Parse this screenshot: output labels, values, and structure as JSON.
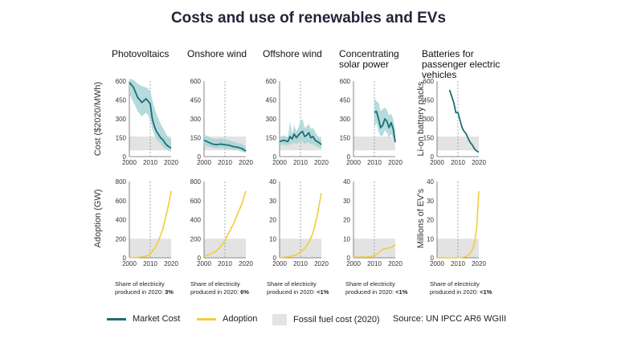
{
  "title": "Costs and use of renewables and EVs",
  "colors": {
    "market_cost": "#1b6f77",
    "band": "#a9d5d6",
    "adoption": "#f2cd3c",
    "fossil": "#e3e3e3"
  },
  "row_labels": {
    "cost": "Cost ($2020/MWh)",
    "battery_cost": "Li-on battery packs",
    "adoption": "Adoption (GW)",
    "ev_adoption": "Millions of EV's"
  },
  "legend": {
    "market_cost": "Market Cost",
    "adoption": "Adoption",
    "fossil": "Fossil fuel cost (2020)",
    "source": "Source: UN IPCC AR6 WGIII"
  },
  "shares": [
    {
      "label": "Share of electricity\nproduced in 2020: ",
      "value": "3%"
    },
    {
      "label": "Share of electricity\nproduced in 2020: ",
      "value": "6%"
    },
    {
      "label": "Share of electricity\nproduced in 2020: ",
      "value": "<1%"
    },
    {
      "label": "Share of electricity\nproduced in 2020: ",
      "value": "<1%"
    },
    {
      "label": "Share of electricity\nproduced in 2020: ",
      "value": "<1%"
    }
  ],
  "chart_data": [
    {
      "type": "line",
      "panel": "Photovoltaics",
      "cost": {
        "ylim": [
          0,
          600
        ],
        "yticks": [
          0,
          150,
          300,
          450,
          600
        ],
        "xticks": [
          2000,
          2010,
          2020
        ],
        "fossil_band": [
          50,
          160
        ],
        "x": [
          2000,
          2002,
          2004,
          2006,
          2008,
          2009,
          2010,
          2011,
          2012,
          2013,
          2014,
          2015,
          2016,
          2017,
          2018,
          2019,
          2020
        ],
        "values": [
          590,
          550,
          470,
          430,
          460,
          440,
          420,
          300,
          240,
          200,
          175,
          150,
          135,
          110,
          90,
          78,
          68
        ],
        "band_high": [
          620,
          610,
          580,
          560,
          550,
          540,
          520,
          450,
          390,
          340,
          300,
          260,
          230,
          200,
          170,
          150,
          140
        ],
        "band_low": [
          500,
          430,
          360,
          320,
          350,
          330,
          290,
          220,
          170,
          140,
          120,
          100,
          80,
          65,
          55,
          45,
          40
        ]
      },
      "adoption": {
        "ylim": [
          0,
          800
        ],
        "yticks": [
          0,
          200,
          400,
          600,
          800
        ],
        "xticks": [
          2000,
          2010,
          2020
        ],
        "fossil_band": [
          0,
          200
        ],
        "x": [
          2000,
          2004,
          2008,
          2010,
          2012,
          2014,
          2016,
          2018,
          2019,
          2020
        ],
        "values": [
          2,
          4,
          15,
          40,
          100,
          180,
          300,
          480,
          580,
          700
        ]
      }
    },
    {
      "type": "line",
      "panel": "Onshore wind",
      "cost": {
        "ylim": [
          0,
          600
        ],
        "yticks": [
          0,
          150,
          300,
          450,
          600
        ],
        "xticks": [
          2000,
          2010,
          2020
        ],
        "fossil_band": [
          50,
          160
        ],
        "x": [
          2000,
          2002,
          2004,
          2006,
          2008,
          2010,
          2012,
          2014,
          2016,
          2018,
          2020
        ],
        "values": [
          130,
          115,
          100,
          95,
          100,
          95,
          90,
          80,
          75,
          65,
          45
        ],
        "band_high": [
          175,
          160,
          145,
          140,
          145,
          140,
          130,
          120,
          110,
          100,
          80
        ],
        "band_low": [
          90,
          80,
          70,
          65,
          70,
          65,
          60,
          55,
          50,
          40,
          30
        ]
      },
      "adoption": {
        "ylim": [
          0,
          800
        ],
        "yticks": [
          0,
          200,
          400,
          600,
          800
        ],
        "xticks": [
          2000,
          2010,
          2020
        ],
        "fossil_band": [
          0,
          200
        ],
        "x": [
          2000,
          2002,
          2004,
          2006,
          2008,
          2010,
          2012,
          2014,
          2016,
          2018,
          2020
        ],
        "values": [
          17,
          30,
          48,
          75,
          120,
          180,
          270,
          350,
          460,
          560,
          700
        ]
      }
    },
    {
      "type": "line",
      "panel": "Offshore wind",
      "cost": {
        "ylim": [
          0,
          600
        ],
        "yticks": [
          0,
          150,
          300,
          450,
          600
        ],
        "xticks": [
          2000,
          2010,
          2020
        ],
        "fossil_band": [
          50,
          160
        ],
        "x": [
          2000,
          2002,
          2004,
          2005,
          2006,
          2007,
          2008,
          2009,
          2010,
          2011,
          2012,
          2013,
          2014,
          2015,
          2016,
          2017,
          2018,
          2019,
          2020
        ],
        "values": [
          120,
          130,
          120,
          160,
          140,
          180,
          150,
          170,
          190,
          200,
          160,
          170,
          190,
          150,
          160,
          130,
          120,
          110,
          95
        ],
        "band_high": [
          150,
          170,
          150,
          280,
          180,
          250,
          200,
          230,
          280,
          300,
          230,
          240,
          260,
          220,
          230,
          200,
          170,
          150,
          130
        ],
        "band_low": [
          90,
          95,
          90,
          100,
          100,
          110,
          100,
          110,
          120,
          120,
          100,
          110,
          110,
          100,
          100,
          85,
          80,
          70,
          60
        ]
      },
      "adoption": {
        "ylim": [
          0,
          40
        ],
        "yticks": [
          0,
          10,
          20,
          30,
          40
        ],
        "xticks": [
          2000,
          2010,
          2020
        ],
        "fossil_band": [
          0,
          10
        ],
        "x": [
          2000,
          2004,
          2008,
          2010,
          2012,
          2014,
          2016,
          2018,
          2019,
          2020
        ],
        "values": [
          0.1,
          0.5,
          1.5,
          3,
          5,
          8,
          13,
          22,
          28,
          34
        ]
      }
    },
    {
      "type": "line",
      "panel": "Concentrating solar power",
      "cost": {
        "ylim": [
          0,
          600
        ],
        "yticks": [
          0,
          150,
          300,
          450,
          600
        ],
        "xticks": [
          2000,
          2010,
          2020
        ],
        "fossil_band": [
          50,
          160
        ],
        "x": [
          2010,
          2011,
          2012,
          2013,
          2014,
          2015,
          2016,
          2017,
          2018,
          2019,
          2020
        ],
        "values": [
          350,
          360,
          300,
          230,
          250,
          300,
          280,
          230,
          270,
          220,
          115
        ],
        "band_high": [
          470,
          440,
          430,
          360,
          380,
          390,
          370,
          330,
          340,
          300,
          210
        ],
        "band_low": [
          230,
          270,
          200,
          160,
          170,
          210,
          190,
          150,
          180,
          150,
          100
        ]
      },
      "adoption": {
        "ylim": [
          0,
          40
        ],
        "yticks": [
          0,
          10,
          20,
          30,
          40
        ],
        "xticks": [
          2000,
          2010,
          2020
        ],
        "fossil_band": [
          0,
          10
        ],
        "x": [
          2000,
          2006,
          2008,
          2010,
          2012,
          2014,
          2016,
          2018,
          2019,
          2020
        ],
        "values": [
          0.4,
          0.4,
          0.5,
          1.3,
          2.5,
          4.5,
          5,
          5.5,
          6,
          7
        ]
      }
    },
    {
      "type": "line",
      "panel": "Batteries for passenger electric vehicles",
      "cost": {
        "ylim": [
          0,
          600
        ],
        "yticks": [
          0,
          150,
          300,
          450,
          600
        ],
        "xticks": [
          2000,
          2010,
          2020
        ],
        "fossil_band": [
          50,
          160
        ],
        "x": [
          2006,
          2008,
          2009,
          2010,
          2011,
          2012,
          2013,
          2014,
          2015,
          2016,
          2017,
          2018,
          2019,
          2020
        ],
        "values": [
          530,
          430,
          350,
          350,
          290,
          230,
          200,
          180,
          140,
          110,
          90,
          60,
          45,
          35
        ]
      },
      "adoption": {
        "ylim": [
          0,
          40
        ],
        "yticks": [
          0,
          10,
          20,
          30,
          40
        ],
        "xticks": [
          2000,
          2010,
          2020
        ],
        "fossil_band": [
          0,
          10
        ],
        "x": [
          2000,
          2008,
          2010,
          2012,
          2014,
          2015,
          2016,
          2017,
          2018,
          2019,
          2020
        ],
        "values": [
          0,
          0,
          0.05,
          0.2,
          0.7,
          1.3,
          2.5,
          4.5,
          8,
          16,
          35
        ]
      }
    }
  ]
}
